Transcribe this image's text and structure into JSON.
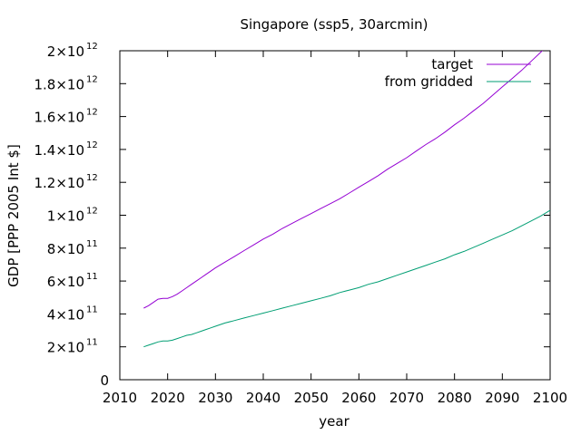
{
  "chart_data": {
    "type": "line",
    "title": "Singapore (ssp5, 30arcmin)",
    "xlabel": "year",
    "ylabel": "GDP [PPP 2005 Int $]",
    "xlim": [
      2010,
      2100
    ],
    "ylim": [
      0,
      2000000000000
    ],
    "x_ticks": [
      {
        "value": 2010,
        "label": "2010"
      },
      {
        "value": 2020,
        "label": "2020"
      },
      {
        "value": 2030,
        "label": "2030"
      },
      {
        "value": 2040,
        "label": "2040"
      },
      {
        "value": 2050,
        "label": "2050"
      },
      {
        "value": 2060,
        "label": "2060"
      },
      {
        "value": 2070,
        "label": "2070"
      },
      {
        "value": 2080,
        "label": "2080"
      },
      {
        "value": 2090,
        "label": "2090"
      },
      {
        "value": 2100,
        "label": "2100"
      }
    ],
    "y_ticks": [
      {
        "value": 0,
        "mant": "0",
        "exp": ""
      },
      {
        "value": 200000000000,
        "mant": "2×10",
        "exp": "11"
      },
      {
        "value": 400000000000,
        "mant": "4×10",
        "exp": "11"
      },
      {
        "value": 600000000000,
        "mant": "6×10",
        "exp": "11"
      },
      {
        "value": 800000000000,
        "mant": "8×10",
        "exp": "11"
      },
      {
        "value": 1000000000000,
        "mant": "1×10",
        "exp": "12"
      },
      {
        "value": 1200000000000,
        "mant": "1.2×10",
        "exp": "12"
      },
      {
        "value": 1400000000000,
        "mant": "1.4×10",
        "exp": "12"
      },
      {
        "value": 1600000000000,
        "mant": "1.6×10",
        "exp": "12"
      },
      {
        "value": 1800000000000,
        "mant": "1.8×10",
        "exp": "12"
      },
      {
        "value": 2000000000000,
        "mant": "2×10",
        "exp": "12"
      }
    ],
    "grid": false,
    "legend_position": "top-right",
    "series": [
      {
        "name": "target",
        "color": "#9400d3",
        "points": [
          [
            2015,
            435000000000.0
          ],
          [
            2016,
            450000000000.0
          ],
          [
            2017,
            470000000000.0
          ],
          [
            2018,
            490000000000.0
          ],
          [
            2019,
            495000000000.0
          ],
          [
            2020,
            495000000000.0
          ],
          [
            2021,
            505000000000.0
          ],
          [
            2022,
            520000000000.0
          ],
          [
            2023,
            540000000000.0
          ],
          [
            2024,
            560000000000.0
          ],
          [
            2025,
            580000000000.0
          ],
          [
            2026,
            600000000000.0
          ],
          [
            2027,
            620000000000.0
          ],
          [
            2028,
            640000000000.0
          ],
          [
            2029,
            660000000000.0
          ],
          [
            2030,
            680000000000.0
          ],
          [
            2032,
            715000000000.0
          ],
          [
            2034,
            750000000000.0
          ],
          [
            2036,
            785000000000.0
          ],
          [
            2038,
            820000000000.0
          ],
          [
            2040,
            855000000000.0
          ],
          [
            2042,
            885000000000.0
          ],
          [
            2044,
            920000000000.0
          ],
          [
            2046,
            950000000000.0
          ],
          [
            2048,
            980000000000.0
          ],
          [
            2050,
            1010000000000.0
          ],
          [
            2052,
            1040000000000.0
          ],
          [
            2054,
            1070000000000.0
          ],
          [
            2056,
            1100000000000.0
          ],
          [
            2058,
            1135000000000.0
          ],
          [
            2060,
            1170000000000.0
          ],
          [
            2062,
            1205000000000.0
          ],
          [
            2064,
            1240000000000.0
          ],
          [
            2066,
            1280000000000.0
          ],
          [
            2068,
            1315000000000.0
          ],
          [
            2070,
            1350000000000.0
          ],
          [
            2072,
            1390000000000.0
          ],
          [
            2074,
            1430000000000.0
          ],
          [
            2076,
            1465000000000.0
          ],
          [
            2078,
            1505000000000.0
          ],
          [
            2080,
            1550000000000.0
          ],
          [
            2082,
            1590000000000.0
          ],
          [
            2084,
            1635000000000.0
          ],
          [
            2086,
            1680000000000.0
          ],
          [
            2088,
            1730000000000.0
          ],
          [
            2090,
            1780000000000.0
          ],
          [
            2092,
            1830000000000.0
          ],
          [
            2094,
            1880000000000.0
          ],
          [
            2096,
            1935000000000.0
          ],
          [
            2098,
            1990000000000.0
          ],
          [
            2100,
            2050000000000.0
          ]
        ]
      },
      {
        "name": "from gridded",
        "color": "#009e73",
        "points": [
          [
            2015,
            200000000000.0
          ],
          [
            2016,
            210000000000.0
          ],
          [
            2017,
            220000000000.0
          ],
          [
            2018,
            230000000000.0
          ],
          [
            2019,
            235000000000.0
          ],
          [
            2020,
            235000000000.0
          ],
          [
            2021,
            240000000000.0
          ],
          [
            2022,
            250000000000.0
          ],
          [
            2023,
            260000000000.0
          ],
          [
            2024,
            270000000000.0
          ],
          [
            2025,
            275000000000.0
          ],
          [
            2026,
            285000000000.0
          ],
          [
            2027,
            295000000000.0
          ],
          [
            2028,
            305000000000.0
          ],
          [
            2029,
            315000000000.0
          ],
          [
            2030,
            325000000000.0
          ],
          [
            2032,
            345000000000.0
          ],
          [
            2034,
            360000000000.0
          ],
          [
            2036,
            375000000000.0
          ],
          [
            2038,
            390000000000.0
          ],
          [
            2040,
            405000000000.0
          ],
          [
            2042,
            420000000000.0
          ],
          [
            2044,
            435000000000.0
          ],
          [
            2046,
            450000000000.0
          ],
          [
            2048,
            465000000000.0
          ],
          [
            2050,
            480000000000.0
          ],
          [
            2052,
            495000000000.0
          ],
          [
            2054,
            510000000000.0
          ],
          [
            2056,
            530000000000.0
          ],
          [
            2058,
            545000000000.0
          ],
          [
            2060,
            560000000000.0
          ],
          [
            2062,
            580000000000.0
          ],
          [
            2064,
            595000000000.0
          ],
          [
            2066,
            615000000000.0
          ],
          [
            2068,
            635000000000.0
          ],
          [
            2070,
            655000000000.0
          ],
          [
            2072,
            675000000000.0
          ],
          [
            2074,
            695000000000.0
          ],
          [
            2076,
            715000000000.0
          ],
          [
            2078,
            735000000000.0
          ],
          [
            2080,
            760000000000.0
          ],
          [
            2082,
            780000000000.0
          ],
          [
            2084,
            805000000000.0
          ],
          [
            2086,
            830000000000.0
          ],
          [
            2088,
            855000000000.0
          ],
          [
            2090,
            880000000000.0
          ],
          [
            2092,
            905000000000.0
          ],
          [
            2094,
            935000000000.0
          ],
          [
            2096,
            965000000000.0
          ],
          [
            2098,
            995000000000.0
          ],
          [
            2100,
            1030000000000.0
          ]
        ]
      }
    ]
  }
}
